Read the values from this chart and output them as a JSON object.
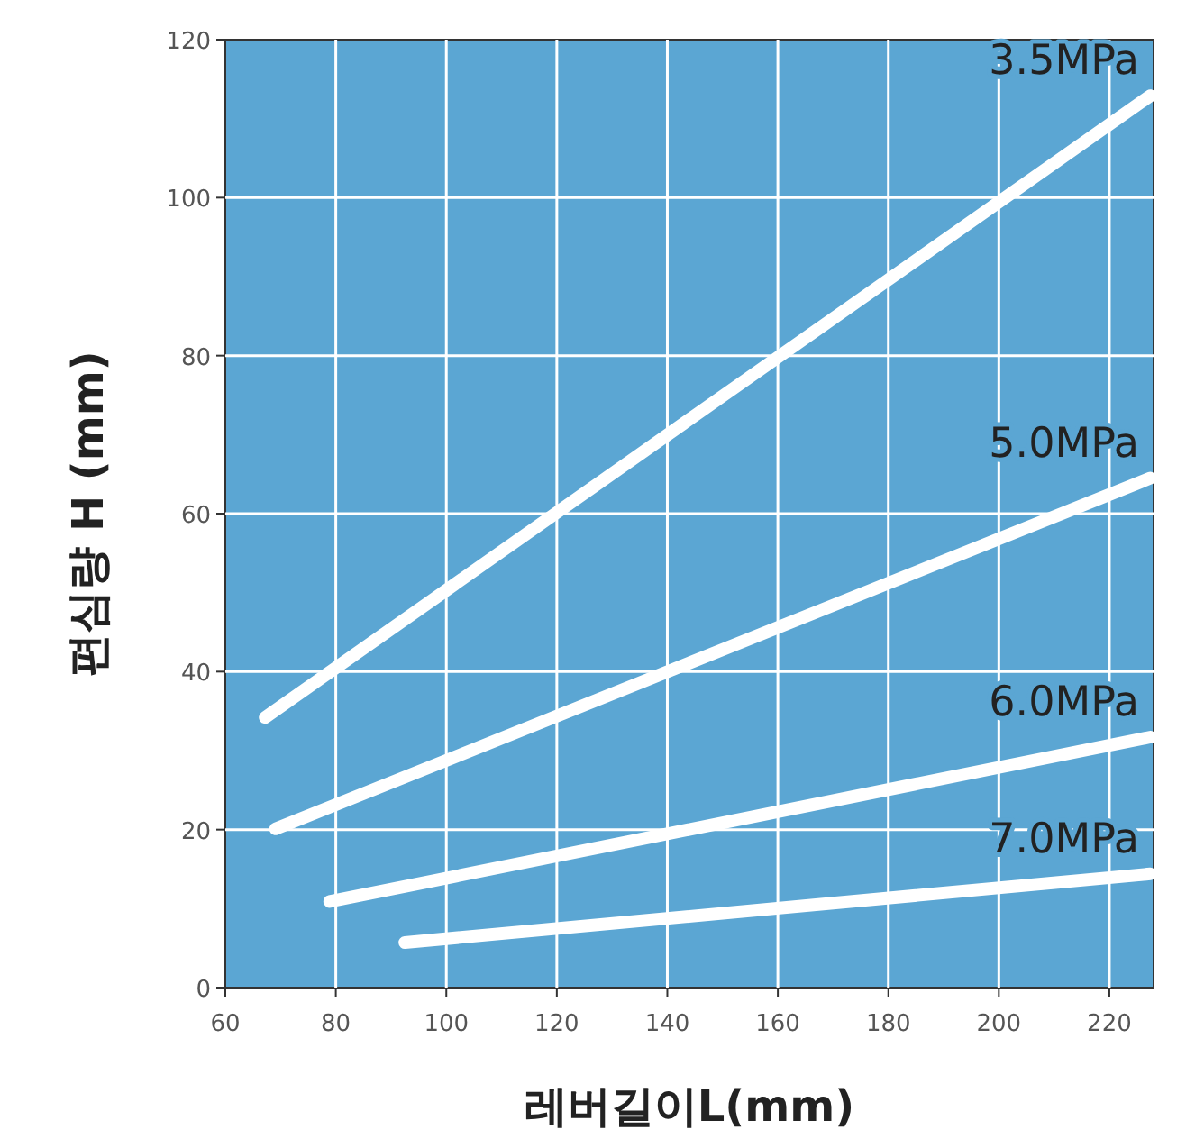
{
  "chart_data": {
    "type": "line",
    "xlabel": "레버길이L(mm)",
    "ylabel": "편심량 H (mm)",
    "xlim": [
      60,
      228
    ],
    "ylim": [
      0,
      120
    ],
    "xticks": [
      60,
      80,
      100,
      120,
      140,
      160,
      180,
      200,
      220
    ],
    "yticks": [
      0,
      20,
      40,
      60,
      80,
      100,
      120
    ],
    "grid": true,
    "marker": "none",
    "line_style": "solid",
    "series": [
      {
        "name": "3.5MPa",
        "color": "#ffffff",
        "x": [
          67.2,
          227.4
        ],
        "values": [
          34.2,
          112.9
        ]
      },
      {
        "name": "5.0MPa",
        "color": "#ffffff",
        "x": [
          69.1,
          227.4
        ],
        "values": [
          20.1,
          64.5
        ]
      },
      {
        "name": "6.0MPa",
        "color": "#ffffff",
        "x": [
          78.9,
          227.4
        ],
        "values": [
          10.9,
          31.7
        ]
      },
      {
        "name": "7.0MPa",
        "color": "#ffffff",
        "x": [
          92.5,
          227.4
        ],
        "values": [
          5.7,
          14.4
        ]
      }
    ]
  }
}
